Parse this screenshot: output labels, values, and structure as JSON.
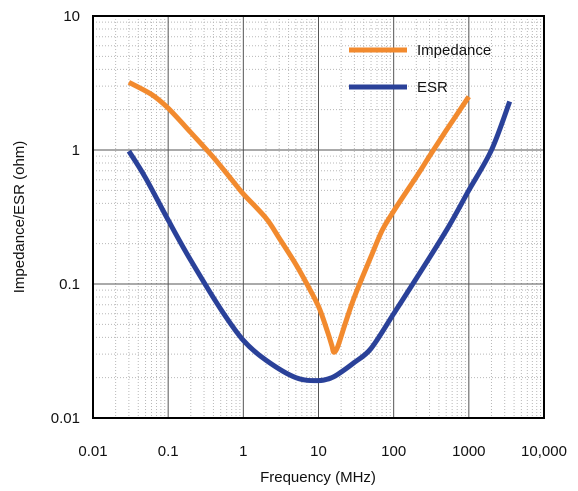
{
  "chart_data": {
    "type": "line",
    "xlabel": "Frequency  (MHz)",
    "ylabel": "Impedance/ESR (ohm)",
    "x_scale": "log",
    "y_scale": "log",
    "xlim": [
      0.01,
      10000
    ],
    "ylim": [
      0.01,
      10
    ],
    "x_ticks": [
      0.01,
      0.1,
      1,
      10,
      100,
      1000,
      10000
    ],
    "x_tick_labels": [
      "0.01",
      "0.1",
      "1",
      "10",
      "100",
      "1000",
      "10,000"
    ],
    "y_ticks": [
      0.01,
      0.1,
      1,
      10
    ],
    "y_tick_labels": [
      "0.01",
      "0.1",
      "1",
      "10"
    ],
    "grid": true,
    "legend_position": "top-right",
    "series": [
      {
        "name": "Impedance",
        "color": "#F28A2E",
        "x": [
          0.03,
          0.06,
          0.1,
          0.2,
          0.4,
          0.7,
          1,
          2,
          3,
          5,
          7,
          10,
          13,
          15,
          16,
          18,
          22,
          30,
          50,
          70,
          100,
          200,
          300,
          500,
          1000
        ],
        "y": [
          3.2,
          2.6,
          2.05,
          1.35,
          0.88,
          0.6,
          0.47,
          0.31,
          0.22,
          0.14,
          0.1,
          0.068,
          0.045,
          0.035,
          0.031,
          0.034,
          0.048,
          0.08,
          0.16,
          0.25,
          0.35,
          0.63,
          0.9,
          1.4,
          2.5
        ]
      },
      {
        "name": "ESR",
        "color": "#2A4199",
        "x": [
          0.03,
          0.05,
          0.1,
          0.2,
          0.5,
          1,
          2,
          5,
          10,
          15,
          20,
          30,
          50,
          100,
          200,
          500,
          1000,
          2000,
          3500
        ],
        "y": [
          0.98,
          0.62,
          0.3,
          0.15,
          0.065,
          0.038,
          0.027,
          0.02,
          0.019,
          0.02,
          0.022,
          0.026,
          0.033,
          0.06,
          0.11,
          0.25,
          0.5,
          1.0,
          2.3
        ]
      }
    ]
  }
}
